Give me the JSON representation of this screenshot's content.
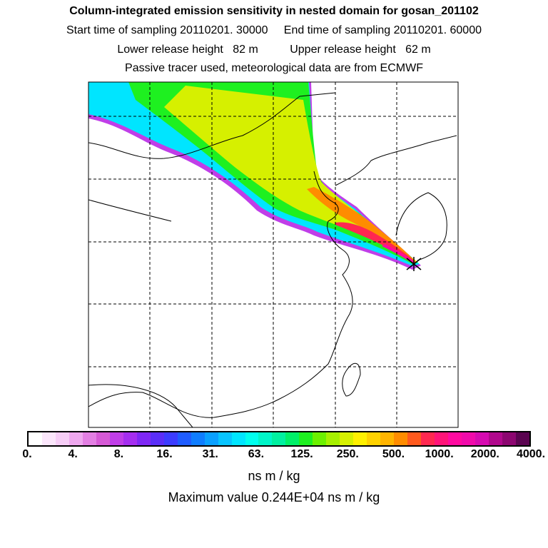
{
  "header": {
    "title": "Column-integrated emission sensitivity in nested domain for gosan_201102",
    "sampling": "Start time of sampling 20110201. 30000     End time of sampling 20110201. 60000",
    "release": "Lower release height   82 m          Upper release height   62 m",
    "tracer": "Passive tracer used, meteorological data are from ECMWF"
  },
  "colorbar": {
    "colors": [
      "#ffffff",
      "#fbe6fb",
      "#f6cdf6",
      "#efa8ef",
      "#e37fe3",
      "#d65ad6",
      "#c03ee8",
      "#a52ef0",
      "#7f28f5",
      "#5a2ef8",
      "#3c3cff",
      "#1f5cff",
      "#0f7dff",
      "#0aa0ff",
      "#08c4ff",
      "#00e5ff",
      "#00ffee",
      "#00f5c8",
      "#00f0a0",
      "#00f068",
      "#1ef020",
      "#6cf000",
      "#a6f000",
      "#d6f000",
      "#fff000",
      "#ffd200",
      "#ffb400",
      "#ff8c00",
      "#ff5a1e",
      "#ff2850",
      "#ff1478",
      "#ff0aa0",
      "#f00aaa",
      "#d60ab0",
      "#b0088c",
      "#8c0670",
      "#5a0450"
    ],
    "labels": [
      "0.",
      "4.",
      "8.",
      "16.",
      "31.",
      "63.",
      "125.",
      "250.",
      "500.",
      "1000.",
      "2000.",
      "4000."
    ],
    "units": "ns m / kg",
    "max_text": "Maximum value  0.244E+04 ns m / kg"
  },
  "map": {
    "release_site": "Gosan",
    "marker": "x-marker-icon",
    "gridlines": "dashed"
  }
}
